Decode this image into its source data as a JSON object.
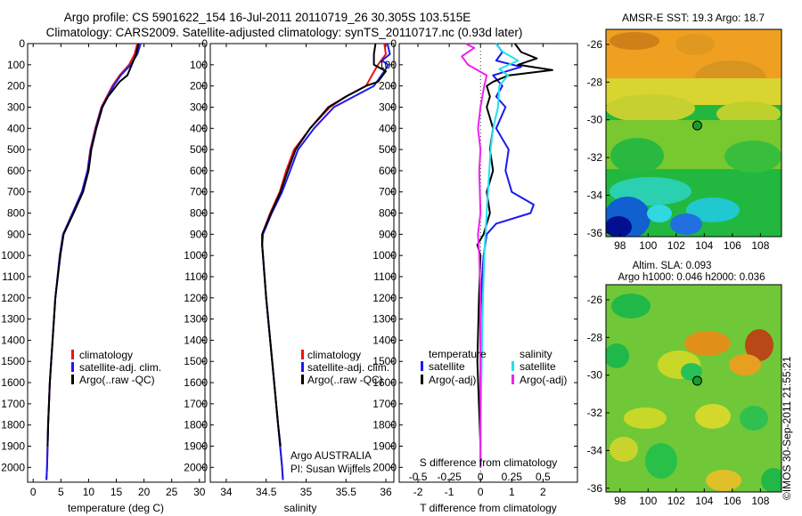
{
  "figure": {
    "title_line1": "Argo profile: CS 5901622_154 16-Jul-2011 20110719_26 30.305S 103.515E",
    "title_line2": "Climatology: CARS2009. Satellite-adjusted climatology: synTS_20110717.nc (0.93d later)",
    "stamp": "©IMOS 30-Sep-2011 21:55:21"
  },
  "colors": {
    "climatology": "#ee1111",
    "satellite_adj": "#1a1aee",
    "argo": "#000000",
    "salinity_satellite": "#22e0ee",
    "salinity_argo": "#ee22ee"
  },
  "chart_data": [
    {
      "id": "temperature",
      "type": "line",
      "xlabel": "temperature (deg C)",
      "ylabel": "",
      "xlim": [
        -1,
        31
      ],
      "ylim": [
        2070,
        0
      ],
      "xticks": [
        0,
        5,
        10,
        15,
        20,
        25,
        30
      ],
      "yticks": [
        0,
        100,
        200,
        300,
        400,
        500,
        600,
        700,
        800,
        900,
        1000,
        1100,
        1200,
        1300,
        1400,
        1500,
        1600,
        1700,
        1800,
        1900,
        2000
      ],
      "legend": [
        "climatology",
        "satellite-adj. clim.",
        "Argo(..raw -QC)"
      ],
      "legend_placement": "center-right",
      "series": [
        {
          "name": "climatology",
          "color": "#ee1111",
          "depth": [
            0,
            50,
            100,
            150,
            200,
            300,
            400,
            500,
            600,
            700,
            800,
            900,
            1000,
            1200,
            1400,
            1600,
            1800,
            2000,
            2060
          ],
          "values": [
            18.8,
            18.3,
            17.3,
            15.6,
            14.3,
            12.3,
            11.2,
            10.3,
            9.8,
            8.8,
            7.1,
            5.4,
            4.8,
            4.0,
            3.5,
            3.0,
            2.7,
            2.5,
            2.4
          ]
        },
        {
          "name": "satellite-adj. clim.",
          "color": "#1a1aee",
          "depth": [
            0,
            50,
            100,
            150,
            200,
            300,
            400,
            500,
            600,
            700,
            800,
            900,
            1000,
            1200,
            1400,
            1600,
            1800,
            2000,
            2060
          ],
          "values": [
            19.4,
            18.8,
            17.6,
            15.8,
            14.5,
            12.4,
            11.3,
            10.4,
            9.8,
            8.8,
            7.1,
            5.4,
            4.8,
            4.0,
            3.5,
            3.0,
            2.7,
            2.5,
            2.4
          ]
        },
        {
          "name": "Argo(..raw -QC)",
          "color": "#000000",
          "depth": [
            0,
            50,
            100,
            150,
            180,
            250,
            300,
            400,
            500,
            600,
            700,
            800,
            900,
            1000,
            1200,
            1400,
            1600,
            1800,
            1900
          ],
          "values": [
            19.0,
            18.6,
            17.8,
            17.0,
            15.6,
            13.5,
            12.5,
            11.4,
            10.5,
            10.0,
            9.0,
            7.3,
            5.5,
            4.9,
            4.0,
            3.5,
            3.0,
            2.7,
            2.6
          ]
        }
      ]
    },
    {
      "id": "salinity",
      "type": "line",
      "xlabel": "salinity",
      "ylabel": "",
      "xlim": [
        33.8,
        36.1
      ],
      "ylim": [
        2070,
        0
      ],
      "xticks": [
        34,
        34.5,
        35,
        35.5,
        36
      ],
      "xtick_labels": [
        "34",
        "34.5",
        "35",
        "35.5",
        "36"
      ],
      "legend": [
        "climatology",
        "satellite-adj. clim.",
        "Argo(..raw -QC)"
      ],
      "legend_placement": "center-right",
      "annotation_line1": "Argo AUSTRALIA",
      "annotation_line2": "PI: Susan Wijffels",
      "series": [
        {
          "name": "climatology",
          "color": "#ee1111",
          "depth": [
            0,
            50,
            100,
            200,
            250,
            300,
            400,
            500,
            600,
            700,
            800,
            900,
            950,
            1000,
            1200,
            1400,
            1600,
            1800,
            2000,
            2060
          ],
          "values": [
            35.98,
            36.0,
            35.9,
            35.75,
            35.5,
            35.3,
            35.05,
            34.85,
            34.75,
            34.67,
            34.55,
            34.45,
            34.45,
            34.46,
            34.5,
            34.55,
            34.6,
            34.65,
            34.7,
            34.71
          ]
        },
        {
          "name": "satellite-adj. clim.",
          "color": "#1a1aee",
          "depth": [
            0,
            50,
            80,
            100,
            130,
            200,
            250,
            300,
            400,
            500,
            600,
            700,
            800,
            900,
            950,
            1000,
            1200,
            1400,
            1600,
            1800,
            2000,
            2060
          ],
          "values": [
            36.02,
            36.05,
            35.95,
            36.03,
            35.98,
            35.85,
            35.6,
            35.35,
            35.1,
            34.9,
            34.8,
            34.7,
            34.57,
            34.46,
            34.45,
            34.46,
            34.5,
            34.55,
            34.6,
            34.65,
            34.7,
            34.71
          ]
        },
        {
          "name": "Argo(..raw -QC)",
          "color": "#000000",
          "depth": [
            0,
            50,
            100,
            130,
            180,
            200,
            250,
            300,
            400,
            500,
            600,
            700,
            800,
            900,
            950,
            1000,
            1200,
            1400,
            1600,
            1800,
            1900
          ],
          "values": [
            35.87,
            35.85,
            35.85,
            36.0,
            35.9,
            35.75,
            35.5,
            35.28,
            35.05,
            34.87,
            34.77,
            34.68,
            34.56,
            34.45,
            34.45,
            34.46,
            34.5,
            34.55,
            34.6,
            34.65,
            34.68
          ]
        }
      ]
    },
    {
      "id": "difference",
      "type": "line",
      "xlabel": "T difference from climatology",
      "x2label": "S difference from climatology",
      "xlim": [
        -2.6,
        3.1
      ],
      "ylim": [
        2070,
        0
      ],
      "xticks": [
        -2,
        -1,
        0,
        1,
        2
      ],
      "x2ticks": [
        -0.5,
        -0.25,
        0,
        0.25,
        0.5
      ],
      "x2tick_labels": [
        "-0.5",
        "-0.25",
        "0",
        "0.25",
        "0.5"
      ],
      "legend_temperature_title": "temperature",
      "legend_salinity_title": "salinity",
      "legend": [
        "satellite",
        "Argo(-adj)",
        "satellite",
        "Argo(-adj)"
      ],
      "series": [
        {
          "name": "satellite",
          "group": "temperature",
          "color": "#1a1aee",
          "depth": [
            0,
            40,
            80,
            110,
            150,
            200,
            250,
            300,
            400,
            500,
            600,
            700,
            760,
            800,
            850,
            900,
            1000,
            1100,
            1300,
            1600,
            2000
          ],
          "values": [
            0.5,
            0.7,
            0.5,
            1.3,
            0.4,
            0.7,
            0.5,
            0.8,
            0.5,
            0.9,
            0.8,
            1.0,
            1.7,
            1.6,
            0.5,
            0.2,
            0.1,
            0.05,
            0.0,
            0.0,
            0.0
          ]
        },
        {
          "name": "Argo(-adj)",
          "group": "temperature",
          "color": "#000000",
          "depth": [
            0,
            40,
            70,
            100,
            125,
            150,
            180,
            200,
            250,
            300,
            400,
            500,
            600,
            700,
            800,
            900,
            950,
            1000,
            1200,
            1500,
            1900
          ],
          "values": [
            1.1,
            1.3,
            1.8,
            1.2,
            2.3,
            0.9,
            0.4,
            0.2,
            0.3,
            0.2,
            0.4,
            0.3,
            0.4,
            0.2,
            0.3,
            0.1,
            -0.1,
            0.0,
            -0.05,
            -0.1,
            0.0
          ]
        },
        {
          "name": "satellite",
          "group": "salinity",
          "color": "#22e0ee",
          "depth": [
            0,
            40,
            80,
            120,
            150,
            200,
            300,
            400,
            500,
            600,
            700,
            800,
            900,
            1000,
            1200,
            1500,
            1800,
            2000
          ],
          "values": [
            0.12,
            0.18,
            0.3,
            0.15,
            0.22,
            0.15,
            0.14,
            0.1,
            0.08,
            0.07,
            0.06,
            0.05,
            0.04,
            0.03,
            0.02,
            0.01,
            0.0,
            0.0
          ]
        },
        {
          "name": "Argo(-adj)",
          "group": "salinity",
          "color": "#ee22ee",
          "depth": [
            0,
            20,
            60,
            100,
            150,
            200,
            300,
            400,
            500,
            600,
            800,
            900,
            1000,
            1200,
            1500,
            1800,
            2000
          ],
          "values": [
            -0.12,
            -0.05,
            -0.15,
            -0.1,
            0.05,
            0.03,
            0.0,
            -0.02,
            0.0,
            -0.01,
            0.0,
            -0.02,
            -0.01,
            0.0,
            0.0,
            0.0,
            0.0
          ]
        }
      ]
    },
    {
      "id": "sst_map",
      "type": "heatmap",
      "title": "AMSR-E SST: 19.3 Argo: 18.7",
      "xlim": [
        97,
        109.5
      ],
      "ylim": [
        -36.2,
        -25.2
      ],
      "xticks": [
        98,
        100,
        102,
        104,
        106,
        108
      ],
      "yticks": [
        -26,
        -28,
        -30,
        -32,
        -34,
        -36
      ],
      "marker": {
        "lon": 103.5,
        "lat": -30.3
      }
    },
    {
      "id": "sla_map",
      "type": "heatmap",
      "title_line1": "Altim. SLA: 0.093",
      "title_line2": "Argo h1000: 0.046 h2000: 0.036",
      "xlim": [
        97,
        109.5
      ],
      "ylim": [
        -36.2,
        -25.2
      ],
      "xticks": [
        98,
        100,
        102,
        104,
        106,
        108
      ],
      "yticks": [
        -26,
        -28,
        -30,
        -32,
        -34,
        -36
      ],
      "marker": {
        "lon": 103.5,
        "lat": -30.3
      }
    }
  ]
}
